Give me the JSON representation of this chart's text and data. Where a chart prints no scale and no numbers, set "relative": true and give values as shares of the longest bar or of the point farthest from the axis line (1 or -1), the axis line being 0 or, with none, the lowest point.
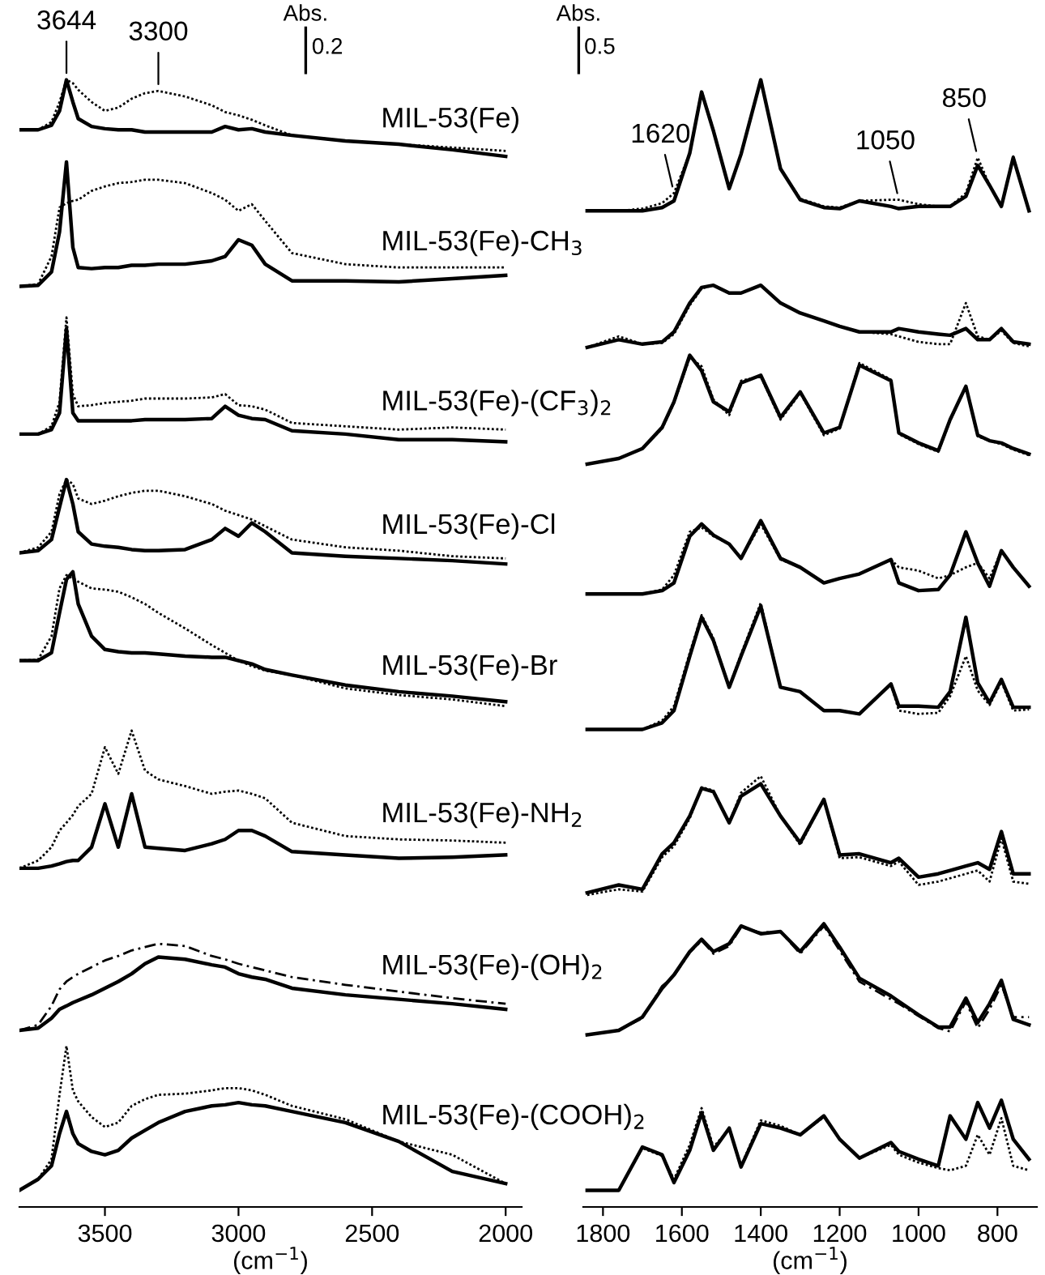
{
  "chart_data": [
    {
      "type": "line",
      "relative": true,
      "xlabel": "(cm$^{−1}$)",
      "xlim": [
        3820,
        1940
      ],
      "xticks": [
        3500,
        3000,
        2500,
        2000
      ],
      "x": [
        3820,
        3750,
        3700,
        3670,
        3644,
        3620,
        3600,
        3550,
        3500,
        3450,
        3400,
        3350,
        3300,
        3200,
        3100,
        3050,
        3000,
        2950,
        2900,
        2800,
        2600,
        2400,
        2200,
        2000
      ],
      "annotations": [
        {
          "text": "3644",
          "x": 3644,
          "y": 1.0
        },
        {
          "text": "3300",
          "x": 3300,
          "y": 0.99
        },
        "Abs.",
        "0.2"
      ],
      "series": [
        {
          "name": "MIL-53(Fe)",
          "color": "#000000",
          "line_style": "solid",
          "values": [
            0.955,
            0.955,
            0.959,
            0.972,
            1.0,
            0.98,
            0.965,
            0.958,
            0.956,
            0.955,
            0.955,
            0.953,
            0.953,
            0.953,
            0.953,
            0.958,
            0.955,
            0.956,
            0.953,
            0.95,
            0.945,
            0.942,
            0.937,
            0.931
          ]
        },
        {
          "color": "#000000",
          "line_style": "dotted",
          "values": [
            0.955,
            0.955,
            0.962,
            0.98,
            1.0,
            0.997,
            0.991,
            0.98,
            0.972,
            0.975,
            0.983,
            0.988,
            0.99,
            0.985,
            0.977,
            0.971,
            0.968,
            0.964,
            0.959,
            0.95,
            0.945,
            0.942,
            0.939,
            0.936
          ]
        },
        {
          "name": "MIL-53(Fe)-CH$_{3}$",
          "color": "#000000",
          "line_style": "solid",
          "values": [
            0.814,
            0.815,
            0.827,
            0.863,
            0.926,
            0.849,
            0.831,
            0.83,
            0.831,
            0.831,
            0.833,
            0.833,
            0.834,
            0.834,
            0.837,
            0.841,
            0.856,
            0.851,
            0.834,
            0.819,
            0.819,
            0.818,
            0.821,
            0.824
          ]
        },
        {
          "color": "#000000",
          "line_style": "dotted",
          "values": [
            0.814,
            0.816,
            0.841,
            0.885,
            0.889,
            0.891,
            0.892,
            0.9,
            0.904,
            0.907,
            0.908,
            0.91,
            0.91,
            0.907,
            0.898,
            0.892,
            0.882,
            0.888,
            0.873,
            0.844,
            0.834,
            0.831,
            0.831,
            0.831
          ]
        },
        {
          "name": "MIL-53(Fe)-(CF$_{3}$)$_{2}$",
          "color": "#000000",
          "line_style": "solid",
          "values": [
            0.681,
            0.681,
            0.685,
            0.7,
            0.776,
            0.7,
            0.693,
            0.693,
            0.693,
            0.693,
            0.693,
            0.694,
            0.694,
            0.694,
            0.695,
            0.706,
            0.698,
            0.695,
            0.694,
            0.684,
            0.681,
            0.676,
            0.676,
            0.674
          ]
        },
        {
          "color": "#000000",
          "line_style": "dotted",
          "values": [
            0.681,
            0.681,
            0.688,
            0.71,
            0.786,
            0.717,
            0.706,
            0.707,
            0.709,
            0.71,
            0.711,
            0.713,
            0.713,
            0.713,
            0.714,
            0.717,
            0.707,
            0.706,
            0.703,
            0.691,
            0.688,
            0.685,
            0.687,
            0.685
          ]
        },
        {
          "name": "MIL-53(Fe)-Cl",
          "color": "#000000",
          "line_style": "solid",
          "values": [
            0.574,
            0.576,
            0.586,
            0.615,
            0.64,
            0.618,
            0.593,
            0.582,
            0.58,
            0.579,
            0.577,
            0.576,
            0.576,
            0.577,
            0.586,
            0.596,
            0.589,
            0.601,
            0.593,
            0.574,
            0.571,
            0.569,
            0.567,
            0.564
          ]
        },
        {
          "color": "#000000",
          "line_style": "dotted",
          "values": [
            0.574,
            0.579,
            0.593,
            0.627,
            0.64,
            0.636,
            0.623,
            0.618,
            0.621,
            0.625,
            0.628,
            0.63,
            0.63,
            0.625,
            0.618,
            0.612,
            0.608,
            0.604,
            0.598,
            0.586,
            0.579,
            0.576,
            0.571,
            0.569
          ]
        },
        {
          "name": "MIL-53(Fe)-Br",
          "color": "#000000",
          "line_style": "solid",
          "values": [
            0.477,
            0.477,
            0.484,
            0.52,
            0.55,
            0.557,
            0.528,
            0.499,
            0.487,
            0.485,
            0.484,
            0.484,
            0.483,
            0.481,
            0.48,
            0.48,
            0.477,
            0.474,
            0.469,
            0.464,
            0.455,
            0.449,
            0.445,
            0.44
          ]
        },
        {
          "color": "#000000",
          "line_style": "dotted",
          "values": [
            0.477,
            0.478,
            0.499,
            0.542,
            0.554,
            0.551,
            0.548,
            0.542,
            0.541,
            0.539,
            0.534,
            0.528,
            0.52,
            0.506,
            0.491,
            0.484,
            0.477,
            0.472,
            0.468,
            0.464,
            0.452,
            0.446,
            0.442,
            0.436
          ]
        },
        {
          "name": "MIL-53(Fe)-NH$_{2}$",
          "color": "#000000",
          "line_style": "solid",
          "values": [
            0.29,
            0.29,
            0.292,
            0.294,
            0.296,
            0.297,
            0.297,
            0.309,
            0.348,
            0.309,
            0.357,
            0.309,
            0.308,
            0.306,
            0.312,
            0.316,
            0.324,
            0.324,
            0.319,
            0.305,
            0.302,
            0.299,
            0.3,
            0.302
          ]
        },
        {
          "color": "#000000",
          "line_style": "dotted",
          "values": [
            0.29,
            0.297,
            0.309,
            0.324,
            0.331,
            0.338,
            0.346,
            0.357,
            0.399,
            0.375,
            0.414,
            0.378,
            0.37,
            0.364,
            0.357,
            0.359,
            0.36,
            0.357,
            0.353,
            0.331,
            0.319,
            0.316,
            0.315,
            0.313
          ]
        },
        {
          "name": "MIL-53(Fe)-(OH)$_{2}$",
          "color": "#000000",
          "line_style": "solid",
          "values": [
            0.144,
            0.146,
            0.155,
            0.163,
            0.166,
            0.169,
            0.171,
            0.176,
            0.182,
            0.188,
            0.195,
            0.204,
            0.21,
            0.208,
            0.203,
            0.201,
            0.195,
            0.192,
            0.19,
            0.182,
            0.176,
            0.172,
            0.168,
            0.163
          ]
        },
        {
          "color": "#000000",
          "line_style": "dashed",
          "values": [
            0.144,
            0.149,
            0.166,
            0.181,
            0.188,
            0.192,
            0.195,
            0.201,
            0.207,
            0.211,
            0.216,
            0.219,
            0.222,
            0.22,
            0.211,
            0.208,
            0.204,
            0.201,
            0.198,
            0.192,
            0.185,
            0.179,
            0.173,
            0.168
          ]
        },
        {
          "name": "MIL-53(Fe)-(COOH)$_{2}$",
          "color": "#000000",
          "line_style": "solid",
          "values": [
            0,
            0.01,
            0.022,
            0.051,
            0.071,
            0.051,
            0.042,
            0.035,
            0.032,
            0.036,
            0.047,
            0.054,
            0.061,
            0.071,
            0.076,
            0.077,
            0.079,
            0.077,
            0.076,
            0.071,
            0.061,
            0.044,
            0.017,
            0.006
          ]
        },
        {
          "color": "#000000",
          "line_style": "dotted",
          "values": [
            0,
            0.01,
            0.028,
            0.086,
            0.13,
            0.09,
            0.08,
            0.066,
            0.057,
            0.061,
            0.076,
            0.082,
            0.086,
            0.087,
            0.09,
            0.092,
            0.092,
            0.09,
            0.086,
            0.076,
            0.064,
            0.044,
            0.032,
            0.006
          ]
        }
      ]
    },
    {
      "type": "line",
      "relative": true,
      "xlabel": "(cm$^{−1}$)",
      "xlim": [
        1850,
        700
      ],
      "xticks": [
        1800,
        1600,
        1400,
        1200,
        1000,
        800
      ],
      "x": [
        1840,
        1760,
        1700,
        1650,
        1620,
        1580,
        1550,
        1520,
        1480,
        1450,
        1400,
        1350,
        1300,
        1240,
        1200,
        1150,
        1070,
        1050,
        1000,
        950,
        920,
        880,
        850,
        820,
        790,
        760,
        720
      ],
      "annotations": [
        {
          "text": "1620",
          "x": 1620,
          "y": 0.898
        },
        {
          "text": "1050",
          "x": 1050,
          "y": 0.892
        },
        {
          "text": "850",
          "x": 850,
          "y": 0.93
        },
        "Abs.",
        "0.5"
      ],
      "series": [
        {
          "color": "#000000",
          "line_style": "solid",
          "values": [
            0.882,
            0.882,
            0.882,
            0.885,
            0.891,
            0.934,
            0.989,
            0.954,
            0.902,
            0.933,
            1.0,
            0.92,
            0.892,
            0.885,
            0.884,
            0.891,
            0.886,
            0.884,
            0.886,
            0.886,
            0.886,
            0.895,
            0.923,
            0.905,
            0.886,
            0.93,
            0.882
          ]
        },
        {
          "color": "#000000",
          "line_style": "dotted",
          "values": [
            0.882,
            0.882,
            0.884,
            0.889,
            0.898,
            0.934,
            0.99,
            0.955,
            0.902,
            0.933,
            1.0,
            0.92,
            0.893,
            0.886,
            0.885,
            0.891,
            0.892,
            0.892,
            0.888,
            0.886,
            0.886,
            0.898,
            0.93,
            0.905,
            0.886,
            0.931,
            0.882
          ]
        },
        {
          "color": "#000000",
          "line_style": "solid",
          "values": [
            0.759,
            0.766,
            0.762,
            0.764,
            0.773,
            0.799,
            0.813,
            0.815,
            0.808,
            0.808,
            0.815,
            0.799,
            0.79,
            0.783,
            0.778,
            0.773,
            0.773,
            0.776,
            0.773,
            0.771,
            0.77,
            0.776,
            0.766,
            0.766,
            0.776,
            0.764,
            0.762
          ]
        },
        {
          "color": "#000000",
          "line_style": "dotted",
          "values": [
            0.759,
            0.769,
            0.762,
            0.763,
            0.771,
            0.797,
            0.812,
            0.815,
            0.808,
            0.808,
            0.815,
            0.799,
            0.79,
            0.783,
            0.778,
            0.773,
            0.771,
            0.769,
            0.764,
            0.762,
            0.762,
            0.799,
            0.769,
            0.766,
            0.774,
            0.763,
            0.76
          ]
        },
        {
          "color": "#000000",
          "line_style": "solid",
          "values": [
            0.654,
            0.659,
            0.668,
            0.687,
            0.71,
            0.752,
            0.738,
            0.71,
            0.701,
            0.727,
            0.734,
            0.696,
            0.719,
            0.682,
            0.687,
            0.743,
            0.729,
            0.682,
            0.673,
            0.666,
            0.694,
            0.724,
            0.68,
            0.675,
            0.673,
            0.668,
            0.663
          ]
        },
        {
          "color": "#000000",
          "line_style": "dotted",
          "values": [
            0.654,
            0.659,
            0.668,
            0.686,
            0.709,
            0.75,
            0.742,
            0.712,
            0.698,
            0.729,
            0.733,
            0.694,
            0.718,
            0.68,
            0.686,
            0.745,
            0.73,
            0.681,
            0.672,
            0.665,
            0.693,
            0.724,
            0.679,
            0.675,
            0.672,
            0.667,
            0.662
          ]
        },
        {
          "color": "#000000",
          "line_style": "solid",
          "values": [
            0.537,
            0.537,
            0.537,
            0.54,
            0.547,
            0.589,
            0.6,
            0.59,
            0.582,
            0.569,
            0.603,
            0.569,
            0.561,
            0.547,
            0.551,
            0.555,
            0.568,
            0.547,
            0.54,
            0.541,
            0.554,
            0.593,
            0.565,
            0.544,
            0.576,
            0.561,
            0.544
          ]
        },
        {
          "color": "#000000",
          "line_style": "dotted",
          "values": [
            0.537,
            0.537,
            0.537,
            0.541,
            0.554,
            0.593,
            0.597,
            0.589,
            0.582,
            0.569,
            0.6,
            0.568,
            0.561,
            0.547,
            0.551,
            0.555,
            0.568,
            0.561,
            0.558,
            0.551,
            0.554,
            0.561,
            0.565,
            0.551,
            0.576,
            0.561,
            0.544
          ]
        },
        {
          "color": "#000000",
          "line_style": "solid",
          "values": [
            0.415,
            0.415,
            0.415,
            0.421,
            0.432,
            0.481,
            0.516,
            0.495,
            0.453,
            0.481,
            0.526,
            0.453,
            0.449,
            0.432,
            0.432,
            0.429,
            0.456,
            0.436,
            0.436,
            0.435,
            0.449,
            0.516,
            0.457,
            0.439,
            0.46,
            0.435,
            0.435
          ]
        },
        {
          "color": "#000000",
          "line_style": "dotted",
          "values": [
            0.415,
            0.415,
            0.415,
            0.423,
            0.436,
            0.484,
            0.518,
            0.497,
            0.453,
            0.483,
            0.529,
            0.453,
            0.449,
            0.432,
            0.432,
            0.429,
            0.456,
            0.432,
            0.429,
            0.43,
            0.445,
            0.481,
            0.45,
            0.437,
            0.458,
            0.432,
            0.433
          ]
        },
        {
          "color": "#000000",
          "line_style": "solid",
          "values": [
            0.268,
            0.275,
            0.271,
            0.303,
            0.313,
            0.337,
            0.362,
            0.359,
            0.331,
            0.355,
            0.366,
            0.337,
            0.313,
            0.352,
            0.302,
            0.303,
            0.295,
            0.299,
            0.282,
            0.285,
            0.288,
            0.292,
            0.295,
            0.289,
            0.323,
            0.285,
            0.285
          ]
        },
        {
          "color": "#000000",
          "line_style": "dotted",
          "values": [
            0.266,
            0.271,
            0.269,
            0.3,
            0.31,
            0.335,
            0.363,
            0.36,
            0.331,
            0.358,
            0.373,
            0.337,
            0.311,
            0.352,
            0.299,
            0.3,
            0.292,
            0.296,
            0.275,
            0.278,
            0.281,
            0.285,
            0.288,
            0.278,
            0.317,
            0.278,
            0.276
          ]
        },
        {
          "color": "#000000",
          "line_style": "solid",
          "values": [
            0.14,
            0.144,
            0.156,
            0.182,
            0.194,
            0.215,
            0.226,
            0.215,
            0.222,
            0.238,
            0.231,
            0.233,
            0.215,
            0.24,
            0.219,
            0.191,
            0.175,
            0.17,
            0.158,
            0.147,
            0.147,
            0.173,
            0.151,
            0.168,
            0.189,
            0.154,
            0.149
          ]
        },
        {
          "color": "#000000",
          "line_style": "dashed",
          "values": [
            0.14,
            0.144,
            0.155,
            0.184,
            0.193,
            0.214,
            0.225,
            0.213,
            0.22,
            0.237,
            0.232,
            0.233,
            0.213,
            0.238,
            0.216,
            0.188,
            0.172,
            0.168,
            0.157,
            0.146,
            0.143,
            0.17,
            0.146,
            0.163,
            0.185,
            0.156,
            0.156
          ]
        },
        {
          "color": "#000000",
          "line_style": "solid",
          "values": [
            0,
            0,
            0.039,
            0.032,
            0.007,
            0.036,
            0.07,
            0.036,
            0.056,
            0.021,
            0.06,
            0.056,
            0.05,
            0.067,
            0.046,
            0.029,
            0.043,
            0.035,
            0.028,
            0.022,
            0.067,
            0.046,
            0.079,
            0.056,
            0.081,
            0.046,
            0.028
          ]
        },
        {
          "color": "#000000",
          "line_style": "dotted",
          "values": [
            0,
            0,
            0.038,
            0.031,
            0.01,
            0.041,
            0.074,
            0.039,
            0.055,
            0.022,
            0.063,
            0.058,
            0.05,
            0.066,
            0.046,
            0.029,
            0.041,
            0.032,
            0.025,
            0.02,
            0.018,
            0.022,
            0.05,
            0.032,
            0.065,
            0.022,
            0.018
          ]
        }
      ]
    }
  ]
}
